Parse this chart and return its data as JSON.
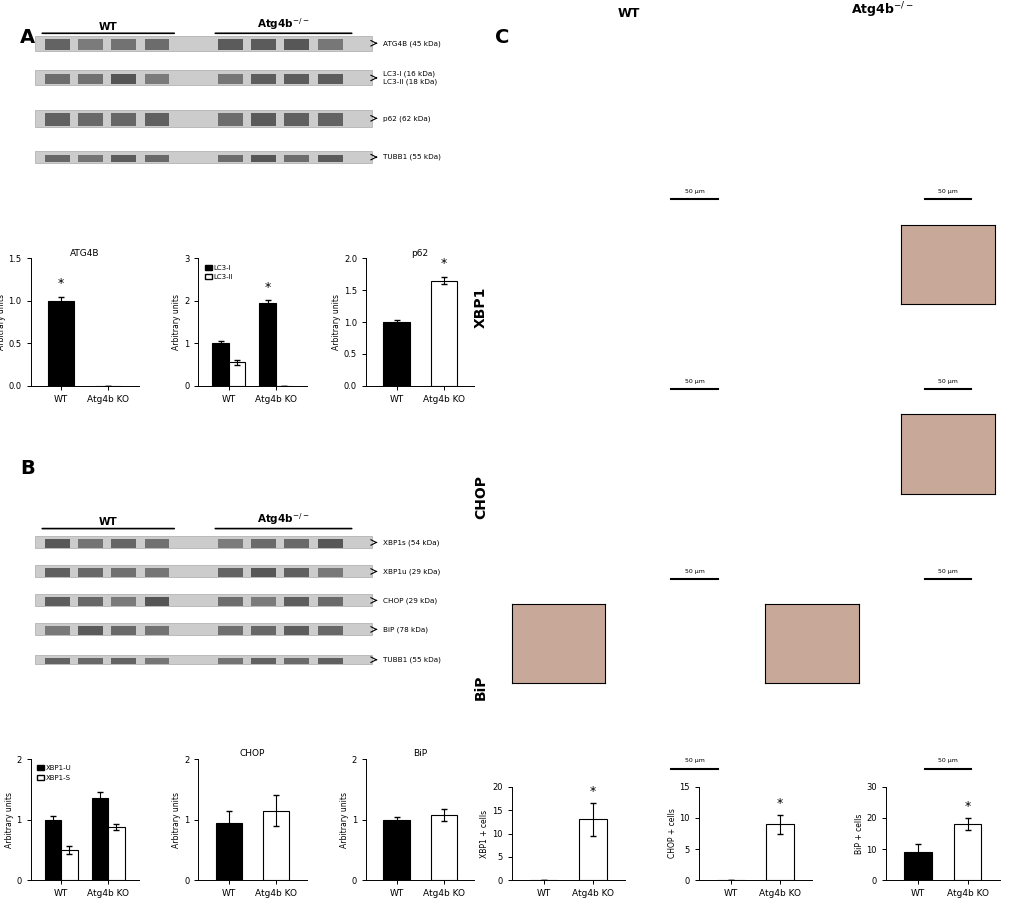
{
  "A_ATG4B": {
    "title": "ATG4B",
    "categories": [
      "WT",
      "Atg4b KO"
    ],
    "values": [
      1.0,
      0.0
    ],
    "errors": [
      0.05,
      0.0
    ],
    "colors": [
      "black",
      "white"
    ],
    "ylim": [
      0,
      1.5
    ],
    "yticks": [
      0,
      0.5,
      1.0,
      1.5
    ],
    "star_pos": [
      0
    ],
    "ylabel": "Arbitrary units"
  },
  "A_LC3": {
    "title": "",
    "legend": [
      "LC3-I",
      "LC3-II"
    ],
    "categories": [
      "WT",
      "Atg4b KO"
    ],
    "values_I": [
      1.0,
      1.95
    ],
    "values_II": [
      0.55,
      0.0
    ],
    "errors_I": [
      0.05,
      0.08
    ],
    "errors_II": [
      0.05,
      0.0
    ],
    "colors": [
      "black",
      "white"
    ],
    "ylim": [
      0,
      3
    ],
    "yticks": [
      0,
      1,
      2,
      3
    ],
    "ylabel": "Arbitrary units"
  },
  "A_p62": {
    "title": "p62",
    "categories": [
      "WT",
      "Atg4b KO"
    ],
    "values": [
      1.0,
      1.65
    ],
    "errors": [
      0.04,
      0.06
    ],
    "colors": [
      "black",
      "white"
    ],
    "ylim": [
      0,
      2
    ],
    "yticks": [
      0,
      0.5,
      1.0,
      1.5,
      2.0
    ],
    "star_pos": [
      1
    ],
    "ylabel": "Arbitrary units"
  },
  "B_XBP1": {
    "title": "",
    "legend": [
      "XBP1-U",
      "XBP1-S"
    ],
    "categories": [
      "WT",
      "Atg4b KO"
    ],
    "values_U": [
      1.0,
      1.35
    ],
    "values_S": [
      0.5,
      0.88
    ],
    "errors_U": [
      0.06,
      0.1
    ],
    "errors_S": [
      0.06,
      0.05
    ],
    "colors": [
      "black",
      "white"
    ],
    "ylim": [
      0,
      2
    ],
    "yticks": [
      0,
      1,
      2
    ],
    "ylabel": "Arbitrary units"
  },
  "B_CHOP": {
    "title": "CHOP",
    "categories": [
      "WT",
      "Atg4b KO"
    ],
    "values": [
      0.95,
      1.15
    ],
    "errors": [
      0.2,
      0.25
    ],
    "colors": [
      "black",
      "white"
    ],
    "ylim": [
      0,
      2
    ],
    "yticks": [
      0,
      1,
      2
    ],
    "ylabel": "Arbitrary units"
  },
  "B_BiP": {
    "title": "BiP",
    "categories": [
      "WT",
      "Atg4b KO"
    ],
    "values": [
      1.0,
      1.07
    ],
    "errors": [
      0.04,
      0.1
    ],
    "colors": [
      "black",
      "white"
    ],
    "ylim": [
      0,
      2
    ],
    "yticks": [
      0,
      1,
      2
    ],
    "ylabel": "Arbitrary units"
  },
  "C_XBP1": {
    "categories": [
      "WT",
      "Atg4b KO"
    ],
    "values": [
      0.0,
      13.0
    ],
    "errors": [
      0.0,
      3.5
    ],
    "colors": [
      "black",
      "white"
    ],
    "ylim": [
      0,
      20
    ],
    "yticks": [
      0,
      5,
      10,
      15,
      20
    ],
    "star_pos": [
      1
    ],
    "ylabel": "XBP1 + cells"
  },
  "C_CHOP": {
    "categories": [
      "WT",
      "Atg4b KO"
    ],
    "values": [
      0.0,
      9.0
    ],
    "errors": [
      0.0,
      1.5
    ],
    "colors": [
      "black",
      "white"
    ],
    "ylim": [
      0,
      15
    ],
    "yticks": [
      0,
      5,
      10,
      15
    ],
    "star_pos": [
      1
    ],
    "ylabel": "CHOP + cells"
  },
  "C_BiP": {
    "categories": [
      "WT",
      "Atg4b KO"
    ],
    "values": [
      9.0,
      18.0
    ],
    "errors": [
      2.5,
      2.0
    ],
    "colors": [
      "black",
      "white"
    ],
    "ylim": [
      0,
      30
    ],
    "yticks": [
      0,
      10,
      20,
      30
    ],
    "star_pos": [
      1
    ],
    "ylabel": "BiP + cells"
  },
  "blot_labels_A": [
    "ATG4B (45 kDa)",
    "LC3-I (16 kDa)\nLC3-II (18 kDa)",
    "p62 (62 kDa)",
    "TUBB1 (55 kDa)"
  ],
  "blot_labels_B": [
    "XBP1s (54 kDa)",
    "XBP1u (29 kDa)",
    "CHOP (29 kDa)",
    "BiP (78 kDa)",
    "TUBB1 (55 kDa)"
  ],
  "bg_color": "#ffffff",
  "bar_width": 0.35
}
